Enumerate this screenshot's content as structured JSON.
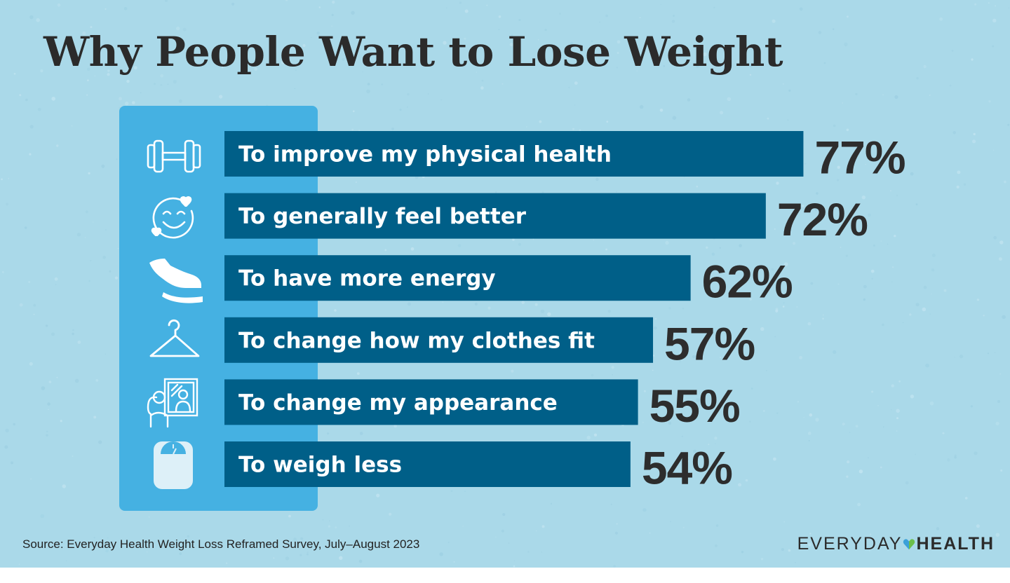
{
  "title": "Why People Want to Lose Weight",
  "source": "Source: Everyday Health Weight Loss Reframed Survey, July–August 2023",
  "logo": {
    "part1": "EVERYDAY",
    "part2": "HEALTH"
  },
  "colors": {
    "background": "#aad9e9",
    "icon_panel": "#45b1e2",
    "bar": "#005f88",
    "bar_text": "#ffffff",
    "value_text": "#2d2d2d",
    "logo_heart_left": "#3aa0d8",
    "logo_heart_right": "#6bbf4a"
  },
  "icons": [
    "dumbbell-icon",
    "smiley-face-icon",
    "sneaker-icon",
    "hanger-icon",
    "mirror-person-icon",
    "bathroom-scale-icon"
  ],
  "chart_data": {
    "type": "bar",
    "orientation": "horizontal",
    "categories": [
      "To improve my physical health",
      "To generally feel better",
      "To have more energy",
      "To change how my clothes fit",
      "To change my appearance",
      "To weigh less"
    ],
    "values": [
      77,
      72,
      62,
      57,
      55,
      54
    ],
    "value_labels": [
      "77%",
      "72%",
      "62%",
      "57%",
      "55%",
      "54%"
    ],
    "unit": "%",
    "title": "Why People Want to Lose Weight",
    "xlabel": "",
    "ylabel": "",
    "grid": false,
    "legend": "none"
  }
}
